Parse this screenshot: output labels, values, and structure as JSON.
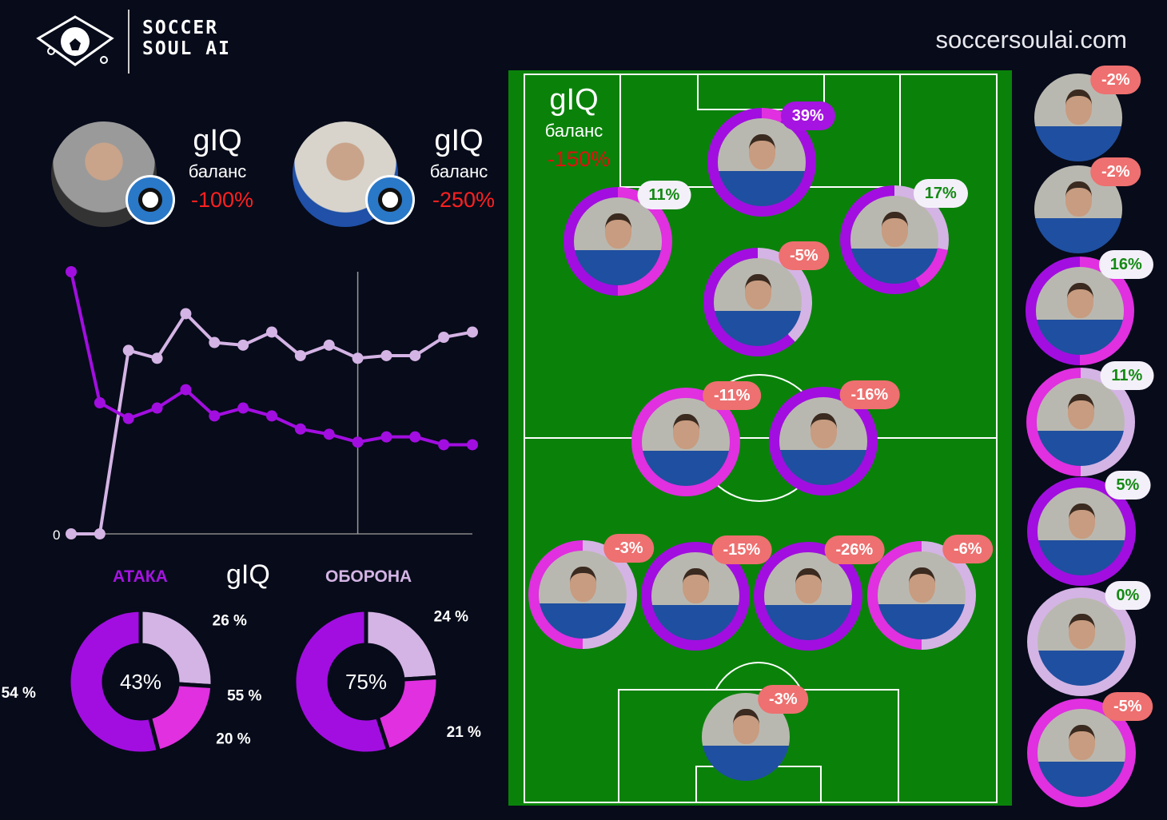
{
  "header": {
    "brand_line1": "SOCCER",
    "brand_line2": "SOUL AI",
    "website": "soccersoulai.com",
    "logo_icon": "graduation-cap-soccer-ball-icon"
  },
  "colors": {
    "purple": "#a20ee0",
    "magenta": "#e030e0",
    "lavender": "#d4b4e4",
    "negative": "#ff2020",
    "badge_negative": "#ee7070",
    "badge_positive_text": "#138a13",
    "pitch": "#0a820a"
  },
  "coaches": [
    {
      "metric": "gIQ",
      "label": "баланс",
      "value": "-100%"
    },
    {
      "metric": "gIQ",
      "label": "баланс",
      "value": "-250%"
    }
  ],
  "chart_data": {
    "type": "line",
    "ytick_labels": [
      "0"
    ],
    "ylim": [
      0,
      100
    ],
    "series": [
      {
        "color": "#a20ee0",
        "values": [
          100,
          50,
          44,
          48,
          55,
          45,
          48,
          45,
          40,
          38,
          35,
          37,
          37,
          34,
          34
        ]
      },
      {
        "color": "#d4b4e4",
        "values": [
          0,
          0,
          70,
          67,
          84,
          73,
          72,
          77,
          68,
          72,
          67,
          68,
          68,
          75,
          77
        ]
      }
    ],
    "marker_index": 10,
    "grid": false
  },
  "donuts": {
    "title": "gIQ",
    "attack": {
      "title": "АТАКА",
      "center": "43%",
      "slices": [
        {
          "label": "26 %",
          "value": 26,
          "color": "#d4b4e4"
        },
        {
          "label": "20 %",
          "value": 20,
          "color": "#e030e0"
        },
        {
          "label": "54 %",
          "value": 54,
          "color": "#a20ee0"
        }
      ]
    },
    "defense": {
      "title": "ОБОРОНА",
      "center": "75%",
      "slices": [
        {
          "label": "24 %",
          "value": 24,
          "color": "#d4b4e4"
        },
        {
          "label": "21 %",
          "value": 21,
          "color": "#e030e0"
        },
        {
          "label": "55 %",
          "value": 55,
          "color": "#a20ee0"
        }
      ]
    }
  },
  "pitch": {
    "metric": "gIQ",
    "label": "баланс",
    "value": "-150%"
  },
  "lineup": [
    {
      "badge": "39%",
      "style": "top",
      "ring": [
        [
          "m",
          0.07
        ],
        [
          "p",
          0.93
        ]
      ]
    },
    {
      "badge": "11%",
      "style": "pos",
      "ring": [
        [
          "m",
          0.5
        ],
        [
          "p",
          0.5
        ]
      ]
    },
    {
      "badge": "17%",
      "style": "pos",
      "ring": [
        [
          "l",
          0.28
        ],
        [
          "m",
          0.14
        ],
        [
          "p",
          0.58
        ]
      ]
    },
    {
      "badge": "-5%",
      "style": "neg",
      "ring": [
        [
          "l",
          0.38
        ],
        [
          "p",
          0.62
        ]
      ]
    },
    {
      "badge": "-11%",
      "style": "neg",
      "ring": [
        [
          "m",
          1
        ]
      ]
    },
    {
      "badge": "-16%",
      "style": "neg",
      "ring": [
        [
          "p",
          1
        ]
      ]
    },
    {
      "badge": "-3%",
      "style": "neg",
      "ring": [
        [
          "l",
          0.5
        ],
        [
          "m",
          0.5
        ]
      ]
    },
    {
      "badge": "-15%",
      "style": "neg",
      "ring": [
        [
          "p",
          1
        ]
      ]
    },
    {
      "badge": "-26%",
      "style": "neg",
      "ring": [
        [
          "p",
          1
        ]
      ]
    },
    {
      "badge": "-6%",
      "style": "neg",
      "ring": [
        [
          "l",
          0.5
        ],
        [
          "m",
          0.5
        ]
      ]
    },
    {
      "badge": "-3%",
      "style": "neg",
      "ring": []
    }
  ],
  "bench": [
    {
      "badge": "-2%",
      "style": "neg",
      "ring": []
    },
    {
      "badge": "-2%",
      "style": "neg",
      "ring": []
    },
    {
      "badge": "16%",
      "style": "pos",
      "ring": [
        [
          "m",
          0.5
        ],
        [
          "p",
          0.5
        ]
      ]
    },
    {
      "badge": "11%",
      "style": "pos",
      "ring": [
        [
          "l",
          0.5
        ],
        [
          "m",
          0.5
        ]
      ]
    },
    {
      "badge": "5%",
      "style": "pos",
      "ring": [
        [
          "p",
          1
        ]
      ]
    },
    {
      "badge": "0%",
      "style": "pos",
      "ring": [
        [
          "l",
          1
        ]
      ]
    },
    {
      "badge": "-5%",
      "style": "neg",
      "ring": [
        [
          "m",
          1
        ]
      ]
    }
  ]
}
